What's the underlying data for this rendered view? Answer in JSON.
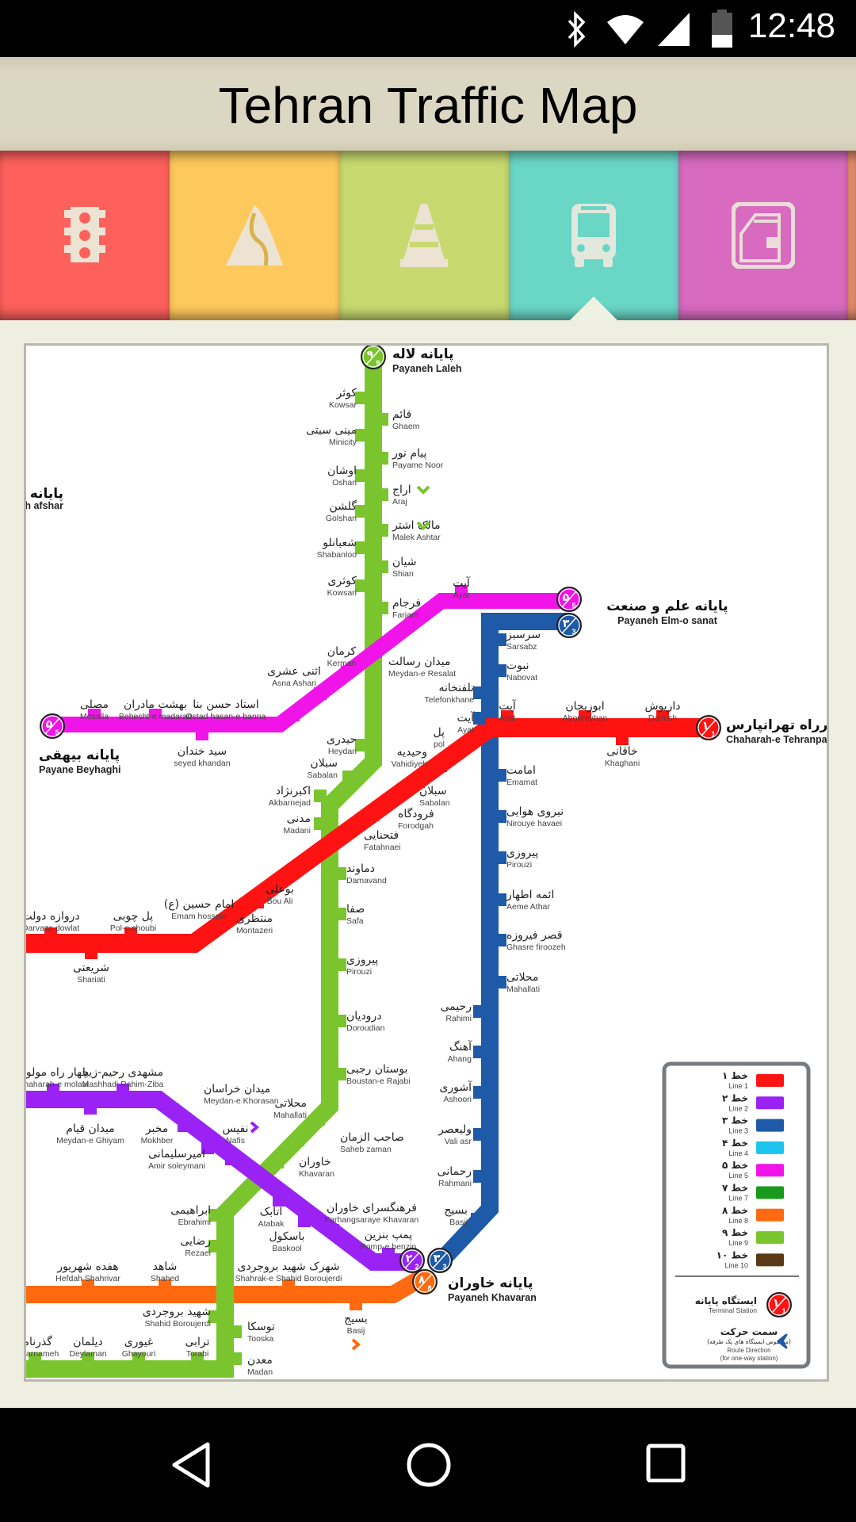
{
  "status_bar": {
    "time": "12:48",
    "icons": [
      "bluetooth-icon",
      "wifi-icon",
      "signal-icon",
      "battery-icon"
    ]
  },
  "header": {
    "title": "Tehran Traffic Map"
  },
  "tabs": [
    {
      "icon": "traffic-light-icon",
      "color": "#fe605c"
    },
    {
      "icon": "road-icon",
      "color": "#fdc95c"
    },
    {
      "icon": "traffic-cone-icon",
      "color": "#c7d96f"
    },
    {
      "icon": "bus-icon",
      "color": "#6ad6c6",
      "selected": true
    },
    {
      "icon": "metro-icon",
      "color": "#d86abf"
    }
  ],
  "map": {
    "line_colors": {
      "1": "#ff1212",
      "2": "#9a22f5",
      "3": "#1f5aa8",
      "4": "#1ec4ee",
      "5": "#f014e8",
      "7": "#1a9a1a",
      "8": "#ff6a10",
      "9": "#7ac52d",
      "10": "#5a3a16"
    },
    "edge_labels": {
      "fa": "پایانه",
      "en": "h afshar"
    },
    "terminals": [
      {
        "fa": "پایانه لاله",
        "en": "Payaneh Laleh",
        "badge_fa": "۹",
        "badge_en": "9",
        "line": "9"
      },
      {
        "fa": "پایانه علم و صنعت",
        "en": "Payaneh Elm-o sanat",
        "badge_fa": "۵",
        "badge_en": "5",
        "line": "5",
        "badge2_fa": "۳",
        "badge2_en": "3",
        "line2": "3"
      },
      {
        "fa": "چهارراه تهرانپارس",
        "en": "Chaharah-e Tehranpars",
        "badge_fa": "۱",
        "badge_en": "1",
        "line": "1"
      },
      {
        "fa": "پایانه بیهقی",
        "en": "Payane Beyhaghi",
        "badge_fa": "۵",
        "badge_en": "5",
        "line": "5"
      },
      {
        "fa": "پایانه خاوران",
        "en": "Payaneh Khavaran",
        "badge_fa": "۲",
        "badge_en": "2",
        "line": "2",
        "badge2_fa": "۳",
        "badge2_en": "3",
        "line2": "3",
        "badge3_fa": "۸",
        "badge3_en": "8",
        "line3": "8"
      }
    ],
    "stations": [
      {
        "fa": "کوثر",
        "en": "Kowsar",
        "line": "9"
      },
      {
        "fa": "قائم",
        "en": "Ghaem",
        "line": "9"
      },
      {
        "fa": "مینی سیتی",
        "en": "Minicity",
        "line": "9"
      },
      {
        "fa": "پیام نور",
        "en": "Payame Noor",
        "line": "9"
      },
      {
        "fa": "اوشان",
        "en": "Oshan",
        "line": "9"
      },
      {
        "fa": "اراج",
        "en": "Araj",
        "line": "9",
        "direction_icon": "chevron-down-icon"
      },
      {
        "fa": "گلشن",
        "en": "Golshan",
        "line": "9"
      },
      {
        "fa": "مالک اشتر",
        "en": "Malek Ashtar",
        "line": "9",
        "direction_icon": "chevron-down-icon"
      },
      {
        "fa": "شعبانلو",
        "en": "Shabanloo",
        "line": "9"
      },
      {
        "fa": "شیان",
        "en": "Shian",
        "line": "9"
      },
      {
        "fa": "کوثری",
        "en": "Kowsari",
        "line": "9"
      },
      {
        "fa": "فرجام",
        "en": "Farjam",
        "line": "9"
      },
      {
        "fa": "حیدری",
        "en": "Heydari",
        "line": "9"
      },
      {
        "fa": "سبلان",
        "en": "Sabalan",
        "line": "9"
      },
      {
        "fa": "اکبرنژاد",
        "en": "Akbarnejad",
        "line": "9"
      },
      {
        "fa": "مدنی",
        "en": "Madani",
        "line": "9"
      },
      {
        "fa": "دماوند",
        "en": "Damavand",
        "line": "9"
      },
      {
        "fa": "صفا",
        "en": "Safa",
        "line": "9"
      },
      {
        "fa": "پیروزی",
        "en": "Pirouzi",
        "line": "9"
      },
      {
        "fa": "درودیان",
        "en": "Doroudian",
        "line": "9"
      },
      {
        "fa": "بوستان رجبی",
        "en": "Boustan-e Rajabi",
        "line": "9"
      },
      {
        "fa": "محلاتی",
        "en": "Mahallati",
        "line": "9"
      },
      {
        "fa": "صاحب الزمان",
        "en": "Saheb zaman",
        "line": "9"
      },
      {
        "fa": "خاوران",
        "en": "Khavaran",
        "line": "9"
      },
      {
        "fa": "ابراهیمی",
        "en": "Ebrahimi",
        "line": "9"
      },
      {
        "fa": "رضایی",
        "en": "Rezaei",
        "line": "9"
      },
      {
        "fa": "شهید بروجردی",
        "en": "Shahid Boroujerdi",
        "line": "9"
      },
      {
        "fa": "توسکا",
        "en": "Tooska",
        "line": "9"
      },
      {
        "fa": "معدن",
        "en": "Madan",
        "line": "9"
      },
      {
        "fa": "ترابی",
        "en": "Torabi",
        "line": "9"
      },
      {
        "fa": "غیوری",
        "en": "Ghayouri",
        "line": "9"
      },
      {
        "fa": "دیلمان",
        "en": "Deylaman",
        "line": "9"
      },
      {
        "fa": "گذرنامه",
        "en": "Gozarnameh",
        "line": "9"
      },
      {
        "fa": "آیت",
        "en": "Ayat",
        "line": "5"
      },
      {
        "fa": "میدان رسالت",
        "en": "Meydan-e Resalat",
        "line": "5"
      },
      {
        "fa": "کرمان",
        "en": "Kerman",
        "line": "5"
      },
      {
        "fa": "اثنی عشری",
        "en": "Asna Ashari",
        "line": "5"
      },
      {
        "fa": "استاد حسن بنا",
        "en": "Ostad hasan-e banna",
        "line": "5"
      },
      {
        "fa": "بهشت مادران",
        "en": "Behesht-e madaran",
        "line": "5"
      },
      {
        "fa": "مصلی",
        "en": "Mosalla",
        "line": "5"
      },
      {
        "fa": "سید خندان",
        "en": "seyed khandan",
        "line": "5"
      },
      {
        "fa": "سرسبز",
        "en": "Sarsabz",
        "line": "3"
      },
      {
        "fa": "نبوت",
        "en": "Nabovat",
        "line": "3"
      },
      {
        "fa": "تلفنخانه",
        "en": "Telefonkhane",
        "line": "3"
      },
      {
        "fa": "آیت",
        "en": "Ayat",
        "line": "3"
      },
      {
        "fa": "آیت",
        "en": "Ayat",
        "line": "1"
      },
      {
        "fa": "امامت",
        "en": "Emamat",
        "line": "3"
      },
      {
        "fa": "نیروی هوایی",
        "en": "Nirouye havaei",
        "line": "3"
      },
      {
        "fa": "پیروزی",
        "en": "Pirouzi",
        "line": "3"
      },
      {
        "fa": "ائمه اطهار",
        "en": "Aeme Athar",
        "line": "3"
      },
      {
        "fa": "قصر فیروزه",
        "en": "Ghasre firoozeh",
        "line": "3"
      },
      {
        "fa": "محلاتی",
        "en": "Mahallati",
        "line": "3"
      },
      {
        "fa": "رحیمی",
        "en": "Rahimi",
        "line": "3"
      },
      {
        "fa": "آهنگ",
        "en": "Ahang",
        "line": "3"
      },
      {
        "fa": "آشوری",
        "en": "Ashoori",
        "line": "3"
      },
      {
        "fa": "ولیعصر",
        "en": "Vali asr",
        "line": "3"
      },
      {
        "fa": "رحمانی",
        "en": "Rahmani",
        "line": "3"
      },
      {
        "fa": "بسیج",
        "en": "Basij",
        "line": "3"
      },
      {
        "fa": "ابوریحان",
        "en": "Aboureyhan",
        "line": "1"
      },
      {
        "fa": "داریوش",
        "en": "Dariush",
        "line": "1"
      },
      {
        "fa": "خاقانی",
        "en": "Khaghani",
        "line": "1"
      },
      {
        "fa": "پل",
        "en": "pol",
        "line": "1"
      },
      {
        "fa": "وحیدیه",
        "en": "Vahidiyeh",
        "line": "1"
      },
      {
        "fa": "سبلان",
        "en": "Sabalan",
        "line": "1"
      },
      {
        "fa": "فرودگاه",
        "en": "Forodgah",
        "line": "1"
      },
      {
        "fa": "فتحنایی",
        "en": "Fatahnaei",
        "line": "1"
      },
      {
        "fa": "بوعلی",
        "en": "Bou Ali",
        "line": "1"
      },
      {
        "fa": "منتظری",
        "en": "Montazeri",
        "line": "1"
      },
      {
        "fa": "امام حسین (ع)",
        "en": "Emam hossein",
        "line": "1"
      },
      {
        "fa": "پل چوبی",
        "en": "Pol-e choubi",
        "line": "1"
      },
      {
        "fa": "دروازه دولت",
        "en": "Darvaze dowlat",
        "line": "1"
      },
      {
        "fa": "شریعتی",
        "en": "Shariati",
        "line": "1"
      },
      {
        "fa": "چهار راه مولوی",
        "en": "Chaharah-e molavi",
        "line": "2"
      },
      {
        "fa": "مشهدی رحیم-زیبا",
        "en": "Mashhadi Rahim-Ziba",
        "line": "2"
      },
      {
        "fa": "میدان خراسان",
        "en": "Meydan-e Khorasan",
        "line": "2"
      },
      {
        "fa": "میدان قیام",
        "en": "Meydan-e Ghiyam",
        "line": "2"
      },
      {
        "fa": "مخبر",
        "en": "Mokhber",
        "line": "2"
      },
      {
        "fa": "نفیس",
        "en": "Nafis",
        "line": "2",
        "direction_icon": "chevron-right-icon"
      },
      {
        "fa": "امیرسلیمانی",
        "en": "Amir soleymani",
        "line": "2"
      },
      {
        "fa": "اتابک",
        "en": "Atabak",
        "line": "2"
      },
      {
        "fa": "باسکول",
        "en": "Baskool",
        "line": "2"
      },
      {
        "fa": "فرهنگسرای خاوران",
        "en": "Farhangsaraye Khavaran",
        "line": "2"
      },
      {
        "fa": "پمپ بنزین",
        "en": "Pomp-e benzin",
        "line": "2"
      },
      {
        "fa": "هفده شهریور",
        "en": "Hefdah Shahrivar",
        "line": "8"
      },
      {
        "fa": "شاهد",
        "en": "Shahed",
        "line": "8"
      },
      {
        "fa": "شهرک شهید بروجردی",
        "en": "Shahrak-e Shahid Boroujerdi",
        "line": "8"
      },
      {
        "fa": "بسیج",
        "en": "Basij",
        "line": "8",
        "direction_icon": "chevron-right-icon"
      }
    ],
    "legend": {
      "lines": [
        {
          "fa": "خط ۱",
          "en": "Line 1",
          "color": "#ff1212"
        },
        {
          "fa": "خط ۲",
          "en": "Line 2",
          "color": "#9a22f5"
        },
        {
          "fa": "خط ۳",
          "en": "Line 3",
          "color": "#1f5aa8"
        },
        {
          "fa": "خط ۴",
          "en": "Line 4",
          "color": "#1ec4ee"
        },
        {
          "fa": "خط ۵",
          "en": "Line 5",
          "color": "#f014e8"
        },
        {
          "fa": "خط ۷",
          "en": "Line 7",
          "color": "#1a9a1a"
        },
        {
          "fa": "خط ۸",
          "en": "Line 8",
          "color": "#ff6a10"
        },
        {
          "fa": "خط ۹",
          "en": "Line 9",
          "color": "#7ac52d"
        },
        {
          "fa": "خط ۱۰",
          "en": "Line 10",
          "color": "#5a3a16"
        }
      ],
      "terminal": {
        "fa": "ایستگاه پایانه",
        "en": "Terminal Station",
        "badge_fa": "۱",
        "badge_en": "1"
      },
      "direction": {
        "fa": "سمت حرکت",
        "fa_note": "(مخصوص ایستگاه های یک طرفه)",
        "en": "Route Direction",
        "en_note": "(for one-way station)"
      }
    }
  },
  "nav_bar": {
    "icons": [
      "back-icon",
      "home-icon",
      "recents-icon"
    ]
  }
}
